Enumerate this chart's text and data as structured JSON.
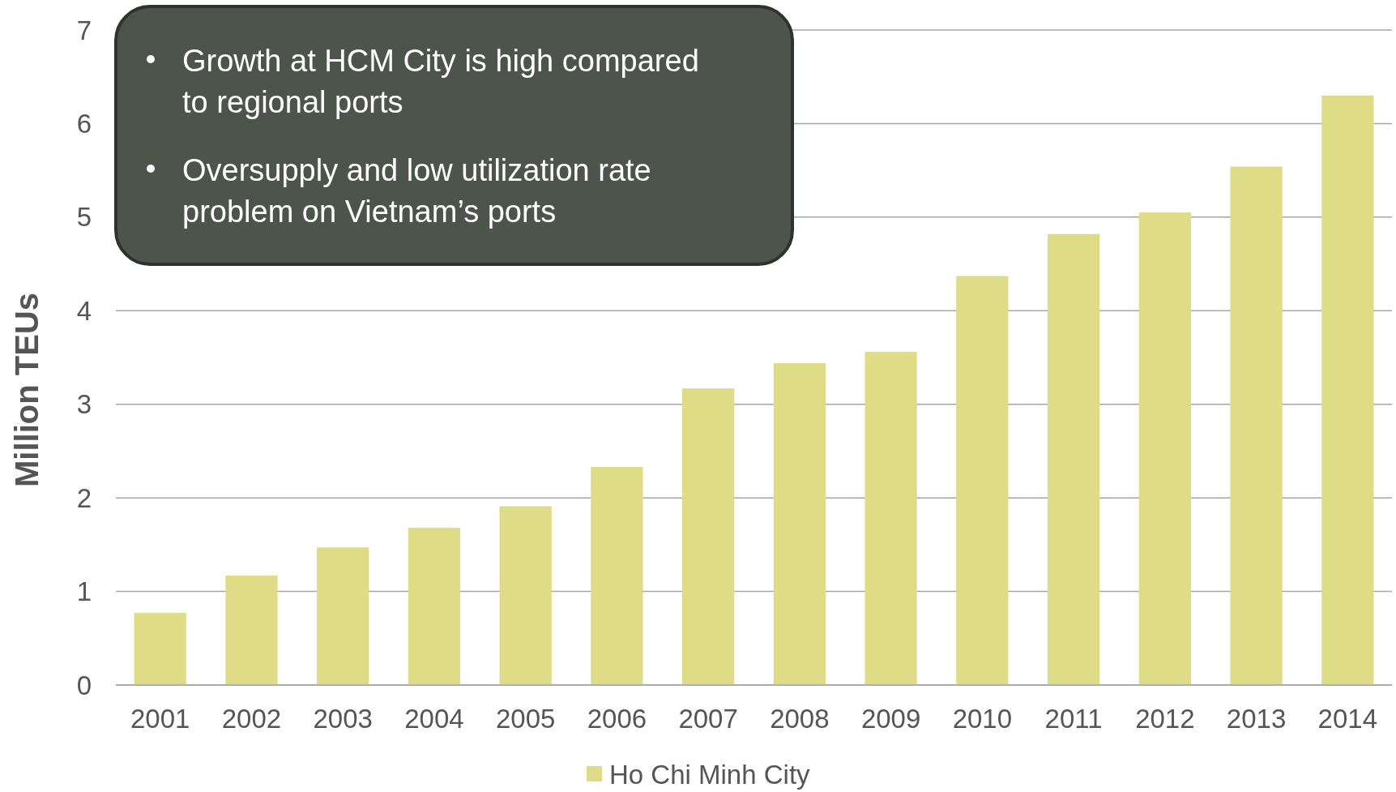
{
  "chart_data": {
    "type": "bar",
    "ylabel": "Million TEUs",
    "categories": [
      "2001",
      "2002",
      "2003",
      "2004",
      "2005",
      "2006",
      "2007",
      "2008",
      "2009",
      "2010",
      "2011",
      "2012",
      "2013",
      "2014"
    ],
    "series": [
      {
        "name": "Ho Chi Minh City",
        "color": "#dfdc88",
        "values": [
          0.77,
          1.17,
          1.47,
          1.68,
          1.91,
          2.33,
          3.17,
          3.44,
          3.56,
          4.37,
          4.82,
          5.05,
          5.54,
          6.3
        ]
      }
    ],
    "ylim": [
      0,
      7
    ],
    "yticks": [
      0,
      1,
      2,
      3,
      4,
      5,
      6,
      7
    ],
    "grid": "y",
    "legend": "bottom",
    "annotations": [
      "Growth at HCM City is high compared to regional ports",
      "Oversupply and low utilization rate problem on Vietnam’s ports"
    ]
  }
}
